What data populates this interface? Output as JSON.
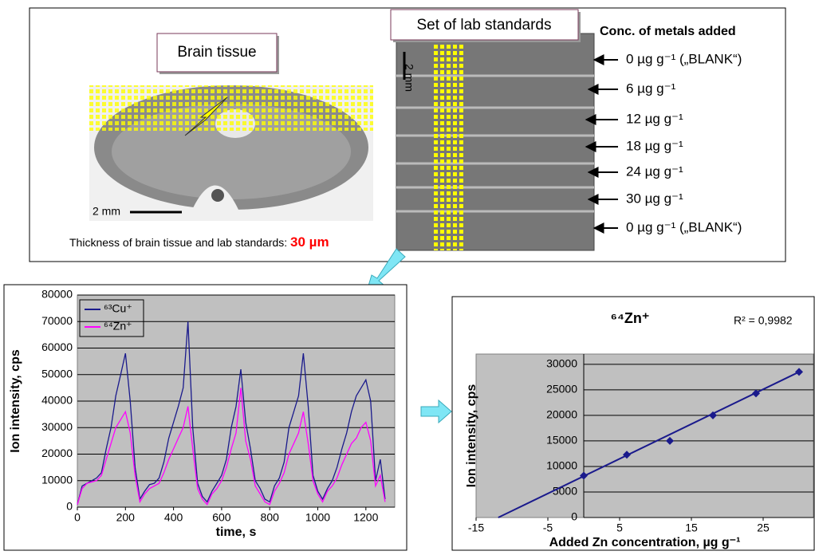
{
  "panel": {
    "brain_label": "Brain tissue",
    "standards_label": "Set of lab standards",
    "conc_title": "Conc. of metals added",
    "conc_levels": [
      "0 µg g⁻¹ („BLANK“)",
      "6 µg g⁻¹",
      "12 µg g⁻¹",
      "18 µg g⁻¹",
      "24 µg g⁻¹",
      "30 µg g⁻¹",
      "0 µg g⁻¹ („BLANK“)"
    ],
    "scale_bars": [
      "2 mm",
      "2 mm"
    ],
    "thickness_text": "Thickness of brain tissue and  lab standards:",
    "thickness_value": "30 µm"
  },
  "chart_data": [
    {
      "type": "line",
      "x_label": "time, s",
      "y_label": "Ion intensity, cps",
      "xlim": [
        0,
        1320
      ],
      "ylim": [
        0,
        80000
      ],
      "xticks": [
        0,
        200,
        400,
        600,
        800,
        1000,
        1200
      ],
      "yticks": [
        0,
        10000,
        20000,
        30000,
        40000,
        50000,
        60000,
        70000,
        80000
      ],
      "grid": true,
      "x": [
        0,
        20,
        40,
        60,
        80,
        100,
        120,
        140,
        160,
        180,
        200,
        220,
        240,
        260,
        280,
        300,
        320,
        340,
        360,
        380,
        400,
        420,
        440,
        460,
        480,
        500,
        520,
        540,
        560,
        580,
        600,
        620,
        640,
        660,
        680,
        700,
        720,
        740,
        760,
        780,
        800,
        820,
        840,
        860,
        880,
        900,
        920,
        940,
        960,
        980,
        1000,
        1020,
        1040,
        1060,
        1080,
        1100,
        1120,
        1140,
        1160,
        1180,
        1200,
        1220,
        1240,
        1260,
        1280
      ],
      "series": [
        {
          "name": "⁶³Cu⁺",
          "color": "#1a1a8c",
          "values": [
            1000,
            8000,
            9000,
            10000,
            11000,
            13000,
            22000,
            30000,
            42000,
            50000,
            58000,
            40000,
            15000,
            3000,
            6000,
            8500,
            9000,
            11000,
            17000,
            26000,
            32000,
            38000,
            45000,
            70000,
            30000,
            9000,
            4000,
            2000,
            6000,
            9000,
            12000,
            18000,
            30000,
            38000,
            52000,
            32000,
            22000,
            10000,
            7000,
            3000,
            2000,
            8000,
            11000,
            17000,
            30000,
            36000,
            42000,
            58000,
            38000,
            12000,
            6000,
            3000,
            7000,
            10000,
            15000,
            22000,
            28000,
            36000,
            42000,
            45000,
            48000,
            40000,
            10000,
            18000,
            3000
          ]
        },
        {
          "name": "⁶⁴Zn⁺",
          "color": "#ff00ff",
          "values": [
            1000,
            7000,
            9000,
            9500,
            10000,
            12000,
            18000,
            24000,
            30000,
            33000,
            36000,
            28000,
            12000,
            2000,
            5000,
            7000,
            8000,
            9000,
            13000,
            18000,
            22000,
            26000,
            30000,
            38000,
            22000,
            7000,
            3000,
            1000,
            5000,
            7000,
            10000,
            15000,
            22000,
            28000,
            45000,
            25000,
            18000,
            8000,
            5000,
            2000,
            1000,
            6000,
            9000,
            13000,
            20000,
            24000,
            28000,
            36000,
            24000,
            10000,
            5000,
            2000,
            6000,
            8000,
            11000,
            16000,
            20000,
            24000,
            26000,
            30000,
            32000,
            25000,
            8000,
            12000,
            2000
          ]
        }
      ]
    },
    {
      "type": "scatter",
      "title": "⁶⁴Zn⁺",
      "annotation": "R² = 0,9982",
      "x_label": "Added Zn concentration, µg g⁻¹",
      "y_label": "Ion intensity, cps",
      "xlim": [
        -15,
        32
      ],
      "ylim": [
        0,
        32000
      ],
      "xticks": [
        -15,
        -5,
        5,
        15,
        25
      ],
      "yticks": [
        0,
        5000,
        10000,
        15000,
        20000,
        25000,
        30000
      ],
      "grid": true,
      "color": "#1a1a8c",
      "x": [
        0,
        6,
        12,
        18,
        24,
        30
      ],
      "values": [
        8200,
        12300,
        15000,
        20000,
        24300,
        28500
      ],
      "fit": {
        "slope": 680,
        "intercept": 8100
      }
    }
  ]
}
